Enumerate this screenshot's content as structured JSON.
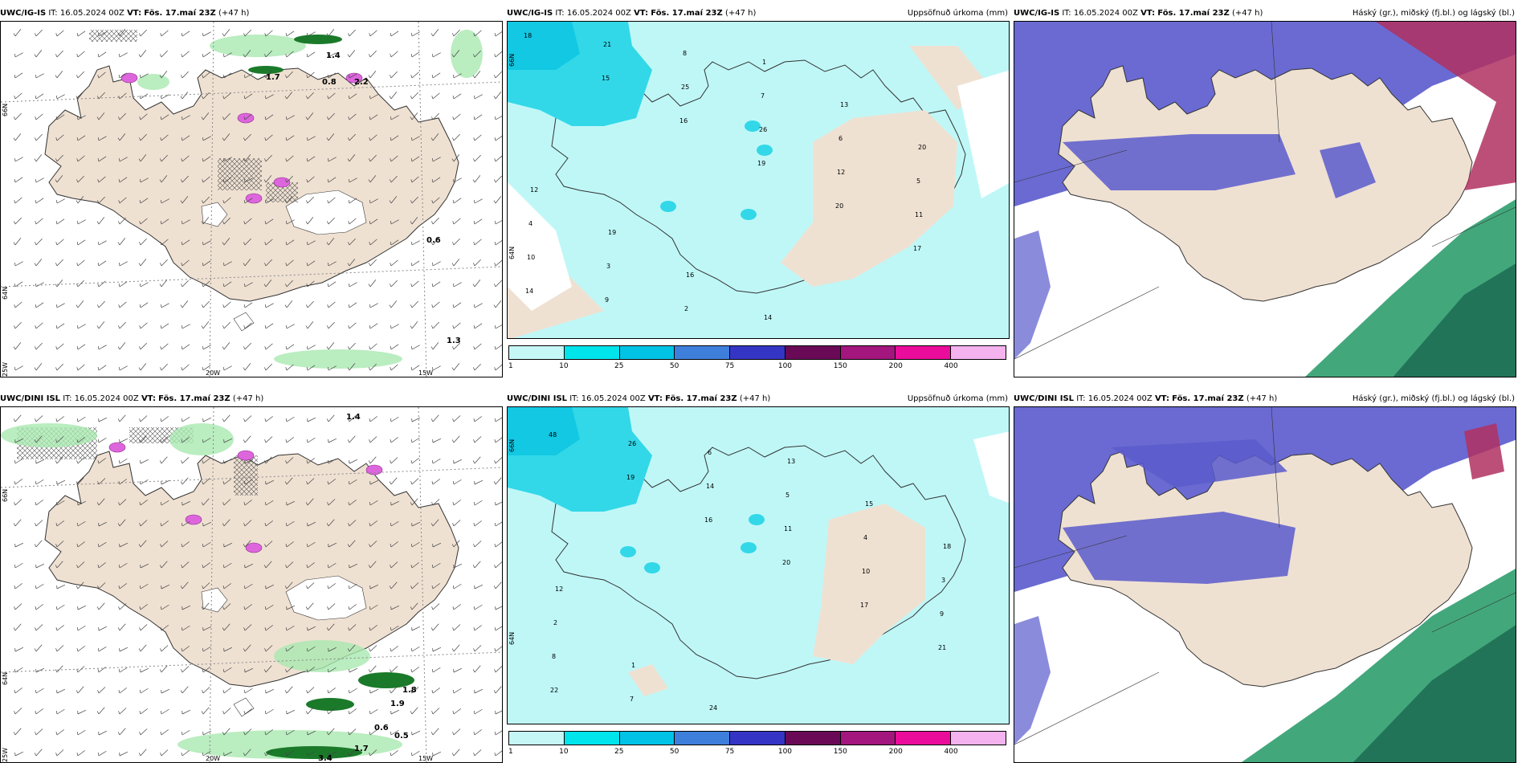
{
  "colors": {
    "land": "#efe1d2",
    "precip_light": "#bff7f7",
    "wind_barb": "#444444",
    "coast": "#333333",
    "sea_white": "#ffffff",
    "high_cloud": "#5a5acd",
    "mid_cloud": "#2e9e6e",
    "low_cloud": "#b03060",
    "snow_hatch": "#555555",
    "convective_precip": "#dd66dd"
  },
  "colorbar": {
    "colors": [
      "#c6f7f7",
      "#00e4ec",
      "#00c3e6",
      "#3f7fdc",
      "#3535c5",
      "#6a0a56",
      "#a2167e",
      "#ea0c9a",
      "#f4b2ee"
    ],
    "labels": [
      "1",
      "10",
      "25",
      "50",
      "75",
      "100",
      "150",
      "200",
      "400"
    ]
  },
  "rows": [
    {
      "model": "UWC/IG-IS",
      "panels": [
        {
          "kind": "wind",
          "title": {
            "model": "UWC/IG-IS",
            "it_label": "IT:",
            "it_value": "16.05.2024 00Z",
            "vt_label": "VT:",
            "vt_value": "Fös. 17.maí 23Z",
            "lead": "(+47 h)",
            "right": ""
          },
          "grid_labels": {
            "lat_66": "66N",
            "lat_64": "64N",
            "lon_25": "25W",
            "lon_20": "20W",
            "lon_15": "15W"
          },
          "values": [
            "1.4",
            "1.7",
            "0.8",
            "2.2",
            "0.6",
            "1.3"
          ]
        },
        {
          "kind": "precip",
          "title": {
            "model": "UWC/IG-IS",
            "it_label": "IT:",
            "it_value": "16.05.2024 00Z",
            "vt_label": "VT:",
            "vt_value": "Fös. 17.maí 23Z",
            "lead": "(+47 h)",
            "right": "Uppsöfnuð úrkoma (mm)"
          },
          "grid_labels": {
            "lat_66": "66N",
            "lat_64": "64N"
          },
          "values": [
            "18",
            "15",
            "16",
            "19",
            "20",
            "17",
            "14",
            "21",
            "25",
            "26",
            "12",
            "11",
            "10",
            "9",
            "8",
            "7",
            "6",
            "5",
            "4",
            "3",
            "2",
            "1",
            "13",
            "20",
            "12",
            "19",
            "16",
            "14"
          ]
        },
        {
          "kind": "cloud",
          "title": {
            "model": "UWC/IG-IS",
            "it_label": "IT:",
            "it_value": "16.05.2024 00Z",
            "vt_label": "VT:",
            "vt_value": "Fös. 17.maí 23Z",
            "lead": "(+47 h)",
            "right": "Háský (gr.), miðský (fj.bl.) og lágský (bl.)"
          }
        }
      ]
    },
    {
      "model": "UWC/DINI ISL",
      "panels": [
        {
          "kind": "wind",
          "title": {
            "model": "UWC/DINI ISL",
            "it_label": "IT:",
            "it_value": "16.05.2024 00Z",
            "vt_label": "VT:",
            "vt_value": "Fös. 17.maí 23Z",
            "lead": "(+47 h)",
            "right": ""
          },
          "grid_labels": {
            "lat_66": "66N",
            "lat_64": "64N",
            "lon_25": "25W",
            "lon_20": "20W",
            "lon_15": "15W"
          },
          "values": [
            "1.4",
            "1.8",
            "1.9",
            "0.6",
            "0.5",
            "3.4",
            "1.7"
          ]
        },
        {
          "kind": "precip",
          "title": {
            "model": "UWC/DINI ISL",
            "it_label": "IT:",
            "it_value": "16.05.2024 00Z",
            "vt_label": "VT:",
            "vt_value": "Fös. 17.maí 23Z",
            "lead": "(+47 h)",
            "right": "Uppsöfnuð úrkoma (mm)"
          },
          "grid_labels": {
            "lat_66": "66N",
            "lat_64": "64N"
          },
          "values": [
            "48",
            "19",
            "16",
            "20",
            "17",
            "21",
            "22",
            "26",
            "14",
            "11",
            "10",
            "9",
            "8",
            "7",
            "6",
            "5",
            "4",
            "3",
            "2",
            "1",
            "24",
            "13",
            "15",
            "18",
            "12"
          ]
        },
        {
          "kind": "cloud",
          "title": {
            "model": "UWC/DINI ISL",
            "it_label": "IT:",
            "it_value": "16.05.2024 00Z",
            "vt_label": "VT:",
            "vt_value": "Fös. 17.maí 23Z",
            "lead": "(+47 h)",
            "right": "Háský (gr.), miðský (fj.bl.) og lágský (bl.)"
          }
        }
      ]
    }
  ]
}
